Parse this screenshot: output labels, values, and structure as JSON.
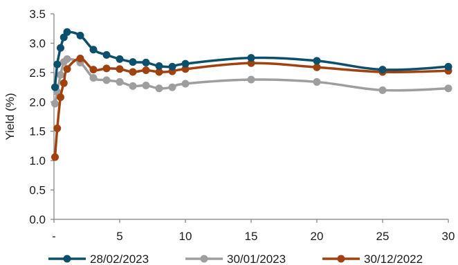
{
  "chart_data": {
    "type": "line",
    "title": "",
    "xlabel": "",
    "ylabel": "Yield (%)",
    "xlim": [
      0,
      30
    ],
    "ylim": [
      0,
      3.5
    ],
    "x_ticks": [
      {
        "value": 0,
        "label": "-"
      },
      {
        "value": 5,
        "label": "5"
      },
      {
        "value": 10,
        "label": "10"
      },
      {
        "value": 15,
        "label": "15"
      },
      {
        "value": 20,
        "label": "20"
      },
      {
        "value": 25,
        "label": "25"
      },
      {
        "value": 30,
        "label": "30"
      }
    ],
    "y_ticks": [
      {
        "value": 0,
        "label": "0.0"
      },
      {
        "value": 0.5,
        "label": "0.5"
      },
      {
        "value": 1,
        "label": "1.0"
      },
      {
        "value": 1.5,
        "label": "1.5"
      },
      {
        "value": 2,
        "label": "2.0"
      },
      {
        "value": 2.5,
        "label": "2.5"
      },
      {
        "value": 3,
        "label": "3.0"
      },
      {
        "value": 3.5,
        "label": "3.5"
      }
    ],
    "grid": false,
    "legend_position": "bottom",
    "series": [
      {
        "name": "28/02/2023",
        "color": "#0b4f6c",
        "points": [
          [
            0.08,
            2.25
          ],
          [
            0.25,
            2.64
          ],
          [
            0.5,
            2.92
          ],
          [
            0.75,
            3.1
          ],
          [
            1,
            3.19
          ],
          [
            2,
            3.13
          ],
          [
            3,
            2.89
          ],
          [
            4,
            2.8
          ],
          [
            5,
            2.73
          ],
          [
            6,
            2.68
          ],
          [
            7,
            2.67
          ],
          [
            8,
            2.61
          ],
          [
            9,
            2.6
          ],
          [
            10,
            2.65
          ],
          [
            15,
            2.75
          ],
          [
            20,
            2.7
          ],
          [
            25,
            2.55
          ],
          [
            30,
            2.6
          ]
        ]
      },
      {
        "name": "30/01/2023",
        "color": "#9e9e9e",
        "points": [
          [
            0.08,
            1.97
          ],
          [
            0.25,
            2.17
          ],
          [
            0.5,
            2.46
          ],
          [
            0.75,
            2.68
          ],
          [
            1,
            2.73
          ],
          [
            2,
            2.67
          ],
          [
            3,
            2.41
          ],
          [
            4,
            2.37
          ],
          [
            5,
            2.34
          ],
          [
            6,
            2.27
          ],
          [
            7,
            2.28
          ],
          [
            8,
            2.23
          ],
          [
            9,
            2.25
          ],
          [
            10,
            2.31
          ],
          [
            15,
            2.38
          ],
          [
            20,
            2.34
          ],
          [
            25,
            2.2
          ],
          [
            30,
            2.23
          ]
        ]
      },
      {
        "name": "30/12/2022",
        "color": "#a0420f",
        "points": [
          [
            0.08,
            1.06
          ],
          [
            0.25,
            1.55
          ],
          [
            0.5,
            2.08
          ],
          [
            0.75,
            2.32
          ],
          [
            1,
            2.56
          ],
          [
            2,
            2.74
          ],
          [
            3,
            2.55
          ],
          [
            4,
            2.57
          ],
          [
            5,
            2.56
          ],
          [
            6,
            2.51
          ],
          [
            7,
            2.54
          ],
          [
            8,
            2.51
          ],
          [
            9,
            2.52
          ],
          [
            10,
            2.56
          ],
          [
            15,
            2.66
          ],
          [
            20,
            2.59
          ],
          [
            25,
            2.51
          ],
          [
            30,
            2.53
          ]
        ]
      }
    ]
  }
}
